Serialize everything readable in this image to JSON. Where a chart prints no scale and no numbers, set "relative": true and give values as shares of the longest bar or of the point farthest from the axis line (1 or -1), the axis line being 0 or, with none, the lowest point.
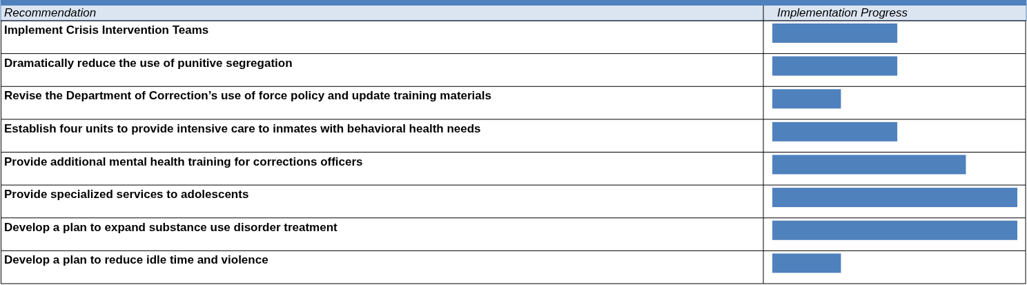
{
  "chart_data": {
    "type": "bar",
    "orientation": "horizontal",
    "relative": true,
    "ylabel": "Recommendation",
    "xlabel": "Implementation Progress",
    "categories": [
      "Implement Crisis Intervention Teams",
      "Dramatically reduce the use of punitive segregation",
      "Revise the Department of Correction’s use of force policy and update training materials",
      "Establish four units to provide intensive care to inmates with behavioral health needs",
      "Provide additional mental health training for corrections officers",
      "Provide specialized services to adolescents",
      "Develop a plan to expand substance use disorder treatment",
      "Develop a plan to reduce idle time and violence"
    ],
    "values": [
      0.51,
      0.51,
      0.28,
      0.51,
      0.79,
      1,
      1,
      0.28
    ],
    "color": "#4f81bd",
    "grid": true
  }
}
